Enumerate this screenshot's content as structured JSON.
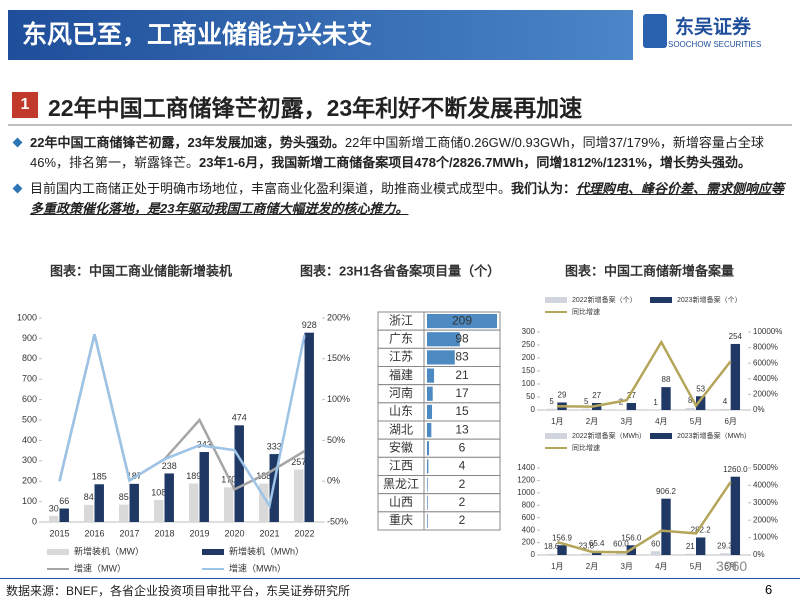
{
  "header": {
    "title": "东风已至，工商业储能方兴未艾",
    "logo_cn": "东吴证券",
    "logo_en": "SOOCHOW SECURITIES"
  },
  "section": {
    "number": "1",
    "title": "22年中国工商储锋芒初露，23年利好不断发展再加速"
  },
  "bullets": [
    [
      {
        "text": "22年中国工商储锋芒初露，23年发展加速，势头强劲。",
        "style": "bold"
      },
      {
        "text": "22年中国新增工商储0.26GW/0.93GWh，同增37/179%，新增容量占全球46%，排名第一，崭露锋芒。",
        "style": "normal"
      },
      {
        "text": "23年1-6月，我国新增工商储备案项目478个/2826.7MWh，同增1812%/1231%，增长势头强劲。",
        "style": "bold"
      }
    ],
    [
      {
        "text": "目前国内工商储正处于明确市场地位，丰富商业化盈利渠道，助推商业模式成型中。",
        "style": "normal"
      },
      {
        "text": "我们认为：",
        "style": "bold"
      },
      {
        "text": "代理购电、峰谷价差、需求侧响应等多重政策催化落地，是23年驱动我国工商储大幅迸发的核心推力。",
        "style": "emphasis"
      }
    ]
  ],
  "chart_data": [
    {
      "type": "combo",
      "title": "图表：中国工商业储能新增装机",
      "categories": [
        "2015",
        "2016",
        "2017",
        "2018",
        "2019",
        "2020",
        "2021",
        "2022"
      ],
      "series": [
        {
          "name": "新增装机（MW）",
          "type": "bar",
          "color": "#d9d9d9",
          "values": [
            30,
            84,
            85,
            108,
            189,
            170,
            188,
            257
          ]
        },
        {
          "name": "新增装机（MWh）",
          "type": "bar",
          "color": "#1f3864",
          "values": [
            66,
            185,
            187,
            238,
            343,
            474,
            333,
            928
          ]
        },
        {
          "name": "增速（MW）",
          "type": "line",
          "axis": "y2",
          "color": "#a6a6a6",
          "values": [
            0,
            180,
            1,
            27,
            75,
            -10,
            11,
            37
          ]
        },
        {
          "name": "增速（MWh）",
          "type": "line",
          "axis": "y2",
          "color": "#9dc3e6",
          "values": [
            0,
            180,
            1,
            27,
            44,
            38,
            -30,
            179
          ]
        }
      ],
      "ylim": [
        0,
        1000
      ],
      "yticks": [
        0,
        100,
        200,
        300,
        400,
        500,
        600,
        700,
        800,
        900,
        1000
      ],
      "y2lim": [
        -50,
        200
      ],
      "y2ticks": [
        {
          "value": -50,
          "label": "-50%"
        },
        {
          "value": 0,
          "label": "0%"
        },
        {
          "value": 50,
          "label": "50%"
        },
        {
          "value": 100,
          "label": "100%"
        },
        {
          "value": 150,
          "label": "150%"
        },
        {
          "value": 200,
          "label": "200%"
        }
      ],
      "legend": "bottom"
    },
    {
      "type": "hbar",
      "title": "图表：23H1各省备案项目量（个）",
      "categories": [
        "浙江",
        "广东",
        "江苏",
        "福建",
        "河南",
        "山东",
        "湖北",
        "安徽",
        "江西",
        "黑龙江",
        "山西",
        "重庆"
      ],
      "values": [
        209,
        98,
        83,
        21,
        17,
        15,
        13,
        6,
        4,
        2,
        2,
        2
      ],
      "color": "#2e75b6"
    },
    {
      "type": "combo",
      "title": "图表：中国工商储新增备案量",
      "categories": [
        "1月",
        "2月",
        "3月",
        "4月",
        "5月",
        "6月"
      ],
      "series": [
        {
          "name": "2022新增备案（个）",
          "type": "bar",
          "color": "#d0d5dd",
          "values": [
            5,
            5,
            2,
            1,
            8,
            4
          ]
        },
        {
          "name": "2023新增备案（个）",
          "type": "bar",
          "color": "#1f3864",
          "values": [
            29,
            27,
            27,
            88,
            53,
            254
          ]
        },
        {
          "name": "同比增速",
          "type": "line",
          "axis": "y2",
          "color": "#b5a55a",
          "values": [
            480,
            440,
            1250,
            8700,
            560,
            6250
          ]
        }
      ],
      "ylim": [
        0,
        300
      ],
      "yticks": [
        0,
        50,
        100,
        150,
        200,
        250,
        300
      ],
      "y2lim": [
        0,
        10000
      ],
      "y2ticks": [
        {
          "value": 0,
          "label": "0%"
        },
        {
          "value": 2000,
          "label": "2000%"
        },
        {
          "value": 4000,
          "label": "4000%"
        },
        {
          "value": 6000,
          "label": "6000%"
        },
        {
          "value": 8000,
          "label": "8000%"
        },
        {
          "value": 10000,
          "label": "10000%"
        }
      ],
      "legend": "top"
    },
    {
      "type": "combo",
      "categories": [
        "1月",
        "2月",
        "3月",
        "4月",
        "5月",
        "6月"
      ],
      "series": [
        {
          "name": "2022新增备案（MWh）",
          "type": "bar",
          "color": "#d0d5dd",
          "values": [
            18.6,
            23.8,
            60,
            60,
            21,
            29.3
          ],
          "value_labels": [
            "18.6",
            "23.8",
            "60.0",
            "60",
            "21",
            "29.3"
          ]
        },
        {
          "name": "2023新增备案（MWh）",
          "type": "bar",
          "color": "#1f3864",
          "values": [
            156.9,
            65.4,
            156,
            906.2,
            282.2,
            1260
          ],
          "value_labels": [
            "156.9",
            "65.4",
            "156.0",
            "906.2",
            "282.2",
            "1260.0"
          ]
        },
        {
          "name": "同比增速",
          "type": "line",
          "axis": "y2",
          "color": "#b5a55a",
          "values": [
            740,
            180,
            160,
            1400,
            1240,
            4200
          ]
        }
      ],
      "ylim": [
        0,
        1400
      ],
      "yticks": [
        0,
        200,
        400,
        600,
        800,
        1000,
        1200,
        1400
      ],
      "y2lim": [
        0,
        5000
      ],
      "y2ticks": [
        {
          "value": 0,
          "label": "0%"
        },
        {
          "value": 1000,
          "label": "1000%"
        },
        {
          "value": 2000,
          "label": "2000%"
        },
        {
          "value": 3000,
          "label": "3000%"
        },
        {
          "value": 4000,
          "label": "4000%"
        },
        {
          "value": 5000,
          "label": "5000%"
        }
      ],
      "legend": "top"
    }
  ],
  "footer": {
    "source": "数据来源：BNEF，各省企业投资项目审批平台，东吴证券研究所",
    "page": "6"
  },
  "watermark": "3060"
}
